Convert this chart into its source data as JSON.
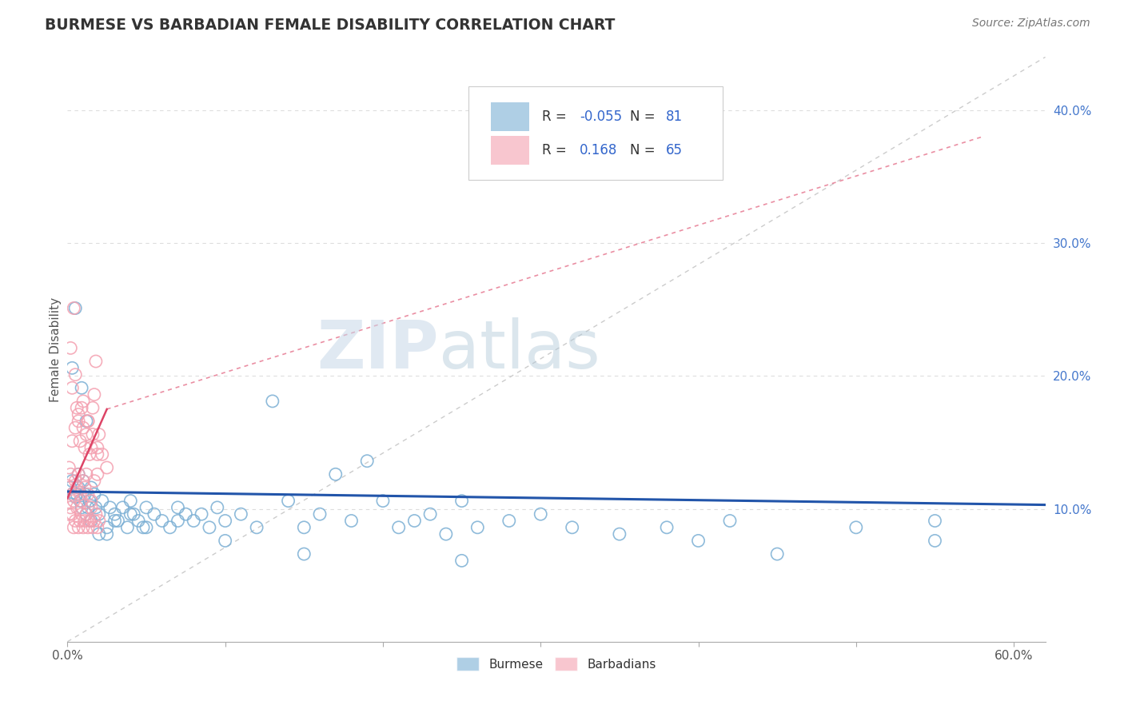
{
  "title": "BURMESE VS BARBADIAN FEMALE DISABILITY CORRELATION CHART",
  "source": "Source: ZipAtlas.com",
  "ylabel": "Female Disability",
  "xlim": [
    0.0,
    0.62
  ],
  "ylim": [
    0.0,
    0.44
  ],
  "ytick_positions": [
    0.1,
    0.2,
    0.3,
    0.4
  ],
  "ytick_labels": [
    "10.0%",
    "20.0%",
    "30.0%",
    "40.0%"
  ],
  "xtick_positions": [
    0.0,
    0.6
  ],
  "xtick_labels": [
    "0.0%",
    "60.0%"
  ],
  "burmese_color": "#7BAFD4",
  "barbadian_color": "#F4A0B0",
  "burmese_R": -0.055,
  "burmese_N": 81,
  "barbadian_R": 0.168,
  "barbadian_N": 65,
  "legend_label_burmese": "Burmese",
  "legend_label_barbadian": "Barbadians",
  "watermark_zip": "ZIP",
  "watermark_atlas": "atlas",
  "background_color": "#ffffff",
  "grid_color": "#DDDDDD",
  "burmese_line_color": "#2255AA",
  "barbadian_line_color": "#DD4466",
  "ref_line_color": "#CCCCCC",
  "burmese_x": [
    0.002,
    0.003,
    0.004,
    0.005,
    0.006,
    0.007,
    0.008,
    0.009,
    0.01,
    0.011,
    0.012,
    0.013,
    0.014,
    0.015,
    0.017,
    0.018,
    0.02,
    0.022,
    0.025,
    0.027,
    0.03,
    0.032,
    0.035,
    0.038,
    0.04,
    0.042,
    0.045,
    0.048,
    0.05,
    0.055,
    0.06,
    0.065,
    0.07,
    0.075,
    0.08,
    0.085,
    0.09,
    0.095,
    0.1,
    0.11,
    0.12,
    0.13,
    0.14,
    0.15,
    0.16,
    0.17,
    0.18,
    0.19,
    0.2,
    0.21,
    0.22,
    0.23,
    0.24,
    0.25,
    0.26,
    0.28,
    0.3,
    0.32,
    0.35,
    0.38,
    0.4,
    0.42,
    0.45,
    0.5,
    0.55,
    0.003,
    0.005,
    0.007,
    0.009,
    0.012,
    0.015,
    0.02,
    0.025,
    0.03,
    0.04,
    0.05,
    0.07,
    0.1,
    0.15,
    0.25,
    0.55
  ],
  "burmese_y": [
    0.116,
    0.121,
    0.112,
    0.109,
    0.111,
    0.116,
    0.106,
    0.101,
    0.121,
    0.111,
    0.096,
    0.101,
    0.106,
    0.091,
    0.111,
    0.101,
    0.096,
    0.106,
    0.081,
    0.101,
    0.096,
    0.091,
    0.101,
    0.086,
    0.106,
    0.096,
    0.091,
    0.086,
    0.101,
    0.096,
    0.091,
    0.086,
    0.101,
    0.096,
    0.091,
    0.096,
    0.086,
    0.101,
    0.091,
    0.096,
    0.086,
    0.181,
    0.106,
    0.086,
    0.096,
    0.126,
    0.091,
    0.136,
    0.106,
    0.086,
    0.091,
    0.096,
    0.081,
    0.106,
    0.086,
    0.091,
    0.096,
    0.086,
    0.081,
    0.086,
    0.076,
    0.091,
    0.066,
    0.086,
    0.076,
    0.206,
    0.251,
    0.126,
    0.191,
    0.166,
    0.116,
    0.081,
    0.086,
    0.091,
    0.096,
    0.086,
    0.091,
    0.076,
    0.066,
    0.061,
    0.091
  ],
  "barbadian_x": [
    0.001,
    0.002,
    0.003,
    0.004,
    0.005,
    0.006,
    0.007,
    0.008,
    0.009,
    0.01,
    0.011,
    0.012,
    0.013,
    0.014,
    0.015,
    0.016,
    0.017,
    0.018,
    0.019,
    0.02,
    0.001,
    0.002,
    0.003,
    0.004,
    0.005,
    0.006,
    0.007,
    0.008,
    0.009,
    0.01,
    0.011,
    0.012,
    0.013,
    0.015,
    0.017,
    0.019,
    0.001,
    0.002,
    0.003,
    0.004,
    0.005,
    0.006,
    0.007,
    0.008,
    0.009,
    0.01,
    0.011,
    0.012,
    0.013,
    0.014,
    0.015,
    0.016,
    0.017,
    0.018,
    0.019,
    0.02,
    0.003,
    0.005,
    0.007,
    0.01,
    0.013,
    0.016,
    0.019,
    0.022,
    0.025
  ],
  "barbadian_y": [
    0.131,
    0.221,
    0.191,
    0.251,
    0.201,
    0.176,
    0.166,
    0.151,
    0.176,
    0.161,
    0.146,
    0.156,
    0.166,
    0.141,
    0.146,
    0.176,
    0.186,
    0.211,
    0.141,
    0.156,
    0.116,
    0.126,
    0.111,
    0.106,
    0.121,
    0.116,
    0.126,
    0.111,
    0.106,
    0.121,
    0.116,
    0.126,
    0.111,
    0.106,
    0.121,
    0.126,
    0.096,
    0.101,
    0.096,
    0.086,
    0.091,
    0.101,
    0.086,
    0.091,
    0.096,
    0.086,
    0.091,
    0.096,
    0.086,
    0.091,
    0.101,
    0.086,
    0.091,
    0.096,
    0.086,
    0.091,
    0.151,
    0.161,
    0.171,
    0.181,
    0.166,
    0.156,
    0.146,
    0.141,
    0.131
  ]
}
